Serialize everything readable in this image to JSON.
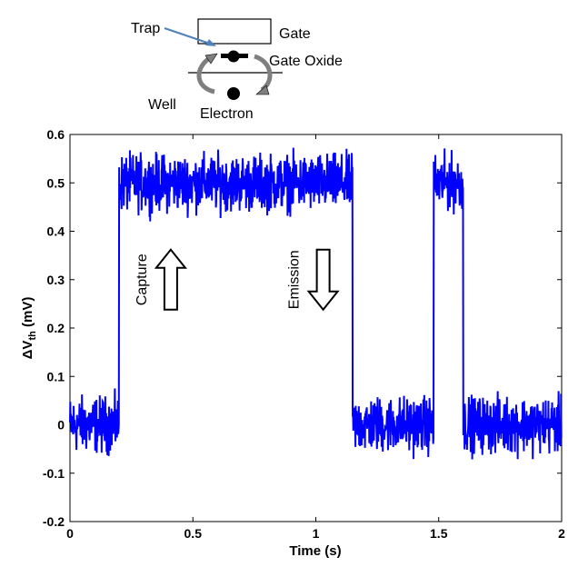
{
  "chart_data": {
    "type": "line",
    "title": "",
    "xlabel": "Time (s)",
    "ylabel": "ΔV",
    "ylabel_sub": "th",
    "ylabel_unit": " (mV)",
    "xlim": [
      0,
      2
    ],
    "ylim": [
      -0.2,
      0.6
    ],
    "x_ticks": [
      0,
      0.5,
      1,
      1.5,
      2
    ],
    "x_tick_labels": [
      "0",
      "0.5",
      "1",
      "1.5",
      "2"
    ],
    "y_ticks": [
      -0.2,
      -0.1,
      0,
      0.1,
      0.2,
      0.3,
      0.4,
      0.5,
      0.6
    ],
    "y_tick_labels": [
      "-0.2",
      "-0.1",
      "0",
      "0.1",
      "0.2",
      "0.3",
      "0.4",
      "0.5",
      "0.6"
    ],
    "grid": false,
    "line_color": "#0000ff",
    "series": [
      {
        "segments": [
          {
            "x_start": 0.0,
            "x_end": 0.2,
            "level": 0.0,
            "noise": 0.035
          },
          {
            "x_start": 0.2,
            "x_end": 1.15,
            "level": 0.5,
            "noise": 0.035
          },
          {
            "x_start": 1.15,
            "x_end": 1.48,
            "level": 0.0,
            "noise": 0.035
          },
          {
            "x_start": 1.48,
            "x_end": 1.6,
            "level": 0.5,
            "noise": 0.035
          },
          {
            "x_start": 1.6,
            "x_end": 2.0,
            "level": 0.0,
            "noise": 0.035
          }
        ]
      }
    ],
    "annotations": [
      {
        "text": "Capture",
        "x": 0.41,
        "y": 0.3,
        "direction": "up"
      },
      {
        "text": "Emission",
        "x": 1.03,
        "y": 0.3,
        "direction": "down"
      }
    ]
  },
  "diagram": {
    "gate_label": "Gate",
    "gate_oxide_label": "Gate Oxide",
    "trap_label": "Trap",
    "well_label": "Well",
    "electron_label": "Electron",
    "arrow_color": "#4f81bd"
  }
}
